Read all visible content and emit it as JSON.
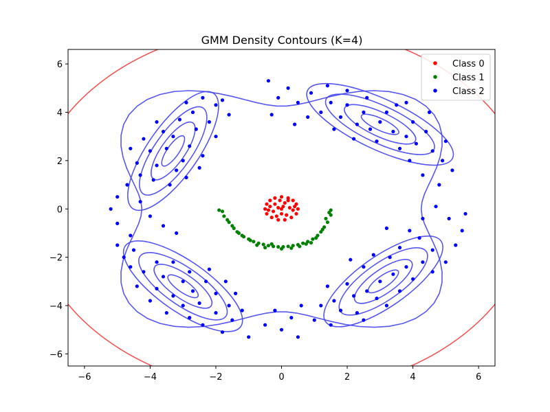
{
  "chart_data": {
    "type": "scatter",
    "title": "GMM Density Contours (K=4)",
    "xlabel": "",
    "ylabel": "",
    "xlim": [
      -6.5,
      6.5
    ],
    "ylim": [
      -6.5,
      6.6
    ],
    "x_ticks": [
      -6,
      -4,
      -2,
      0,
      2,
      4,
      6
    ],
    "y_ticks": [
      -6,
      -4,
      -2,
      0,
      2,
      4,
      6
    ],
    "x_tick_labels": [
      "−6",
      "−4",
      "−2",
      "0",
      "2",
      "4",
      "6"
    ],
    "y_tick_labels": [
      "−6",
      "−4",
      "−2",
      "0",
      "2",
      "4",
      "6"
    ],
    "grid": false,
    "legend_position": "top-right",
    "series": [
      {
        "name": "Class 0",
        "color": "#ff0000",
        "points": [
          [
            0,
            0.5
          ],
          [
            -0.2,
            0.45
          ],
          [
            0.2,
            0.45
          ],
          [
            -0.35,
            0.35
          ],
          [
            0.35,
            0.35
          ],
          [
            -0.45,
            0.2
          ],
          [
            0.45,
            0.2
          ],
          [
            -0.5,
            0
          ],
          [
            0.5,
            0
          ],
          [
            -0.45,
            -0.2
          ],
          [
            0.45,
            -0.2
          ],
          [
            -0.3,
            -0.35
          ],
          [
            0.3,
            -0.35
          ],
          [
            -0.1,
            -0.45
          ],
          [
            0.1,
            -0.45
          ],
          [
            -0.2,
            0.2
          ],
          [
            0.1,
            0.25
          ],
          [
            0.25,
            0.05
          ],
          [
            -0.25,
            -0.1
          ],
          [
            0,
            -0.2
          ],
          [
            0.15,
            -0.25
          ],
          [
            -0.1,
            0.05
          ],
          [
            0.05,
            0.1
          ],
          [
            -0.35,
            0.1
          ],
          [
            0.35,
            -0.05
          ],
          [
            -0.15,
            -0.3
          ],
          [
            0.2,
            0.35
          ],
          [
            -0.05,
            0.35
          ],
          [
            0.4,
            0.1
          ],
          [
            -0.4,
            -0.05
          ],
          [
            0,
            0
          ]
        ]
      },
      {
        "name": "Class 1",
        "color": "#008000",
        "points": [
          [
            -1.9,
            -0.05
          ],
          [
            -1.75,
            -0.3
          ],
          [
            -1.6,
            -0.55
          ],
          [
            -1.45,
            -0.8
          ],
          [
            -1.3,
            -1.0
          ],
          [
            -1.15,
            -1.15
          ],
          [
            -1.0,
            -1.25
          ],
          [
            -0.85,
            -1.35
          ],
          [
            -0.7,
            -1.42
          ],
          [
            -0.55,
            -1.47
          ],
          [
            -0.4,
            -1.52
          ],
          [
            -0.25,
            -1.55
          ],
          [
            -0.1,
            -1.57
          ],
          [
            0.05,
            -1.57
          ],
          [
            0.2,
            -1.55
          ],
          [
            0.35,
            -1.52
          ],
          [
            0.5,
            -1.48
          ],
          [
            0.65,
            -1.42
          ],
          [
            0.8,
            -1.35
          ],
          [
            0.95,
            -1.25
          ],
          [
            1.1,
            -1.1
          ],
          [
            1.2,
            -0.95
          ],
          [
            1.3,
            -0.75
          ],
          [
            1.4,
            -0.55
          ],
          [
            1.5,
            -0.25
          ],
          [
            1.5,
            -0.05
          ],
          [
            -1.8,
            -0.1
          ],
          [
            -1.65,
            -0.45
          ],
          [
            -1.5,
            -0.7
          ],
          [
            -1.35,
            -0.95
          ],
          [
            -1.2,
            -1.1
          ],
          [
            -0.95,
            -1.3
          ],
          [
            -0.75,
            -1.5
          ],
          [
            -0.5,
            -1.6
          ],
          [
            -0.3,
            -1.45
          ],
          [
            0.0,
            -1.65
          ],
          [
            0.3,
            -1.62
          ],
          [
            0.55,
            -1.55
          ],
          [
            0.75,
            -1.45
          ],
          [
            0.9,
            -1.4
          ],
          [
            1.05,
            -1.2
          ],
          [
            1.25,
            -0.85
          ],
          [
            1.35,
            -0.4
          ],
          [
            1.45,
            -0.15
          ]
        ]
      },
      {
        "name": "Class 2",
        "color": "#0000ff",
        "points": [
          [
            -3.5,
            2.5
          ],
          [
            -3.3,
            3.0
          ],
          [
            -3.0,
            2.0
          ],
          [
            -2.8,
            2.6
          ],
          [
            -3.8,
            1.8
          ],
          [
            -4.0,
            2.4
          ],
          [
            -3.2,
            1.6
          ],
          [
            -2.6,
            3.3
          ],
          [
            -3.6,
            3.2
          ],
          [
            -4.2,
            2.9
          ],
          [
            -2.9,
            1.3
          ],
          [
            -3.9,
            1.2
          ],
          [
            -4.4,
            1.9
          ],
          [
            -2.4,
            2.2
          ],
          [
            -3.1,
            3.7
          ],
          [
            -2.7,
            4.0
          ],
          [
            -3.8,
            3.6
          ],
          [
            -4.6,
            2.5
          ],
          [
            -4.3,
            1.4
          ],
          [
            -2.2,
            3.6
          ],
          [
            -2.0,
            3.0
          ],
          [
            -2.5,
            1.7
          ],
          [
            -3.4,
            1.0
          ],
          [
            -4.7,
            1.0
          ],
          [
            -5.0,
            0.5
          ],
          [
            -5.2,
            0.0
          ],
          [
            -5.0,
            -0.6
          ],
          [
            -4.6,
            -1.1
          ],
          [
            -4.3,
            0.3
          ],
          [
            -4.0,
            -0.3
          ],
          [
            -3.6,
            -0.7
          ],
          [
            -3.2,
            -1.0
          ],
          [
            -2.9,
            4.4
          ],
          [
            -2.4,
            4.6
          ],
          [
            -2.0,
            4.3
          ],
          [
            -1.6,
            3.9
          ],
          [
            -1.8,
            4.5
          ],
          [
            -3.0,
            -3.0
          ],
          [
            -2.7,
            -3.4
          ],
          [
            -2.3,
            -3.0
          ],
          [
            -3.3,
            -3.6
          ],
          [
            -3.6,
            -2.8
          ],
          [
            -2.0,
            -3.5
          ],
          [
            -2.5,
            -3.9
          ],
          [
            -3.0,
            -4.0
          ],
          [
            -3.8,
            -3.3
          ],
          [
            -4.2,
            -2.6
          ],
          [
            -4.0,
            -3.8
          ],
          [
            -2.8,
            -2.6
          ],
          [
            -2.2,
            -2.5
          ],
          [
            -1.7,
            -3.0
          ],
          [
            -1.6,
            -4.0
          ],
          [
            -2.0,
            -4.3
          ],
          [
            -2.8,
            -4.5
          ],
          [
            -3.5,
            -4.3
          ],
          [
            -4.4,
            -3.2
          ],
          [
            -4.6,
            -2.4
          ],
          [
            -3.8,
            -2.2
          ],
          [
            -3.3,
            -2.2
          ],
          [
            -1.4,
            -3.5
          ],
          [
            -1.2,
            -4.2
          ],
          [
            -1.5,
            -4.6
          ],
          [
            -2.4,
            -4.8
          ],
          [
            -1.8,
            -5.1
          ],
          [
            -1.0,
            -5.3
          ],
          [
            -4.8,
            -2.0
          ],
          [
            -5.0,
            -1.5
          ],
          [
            -4.5,
            -1.7
          ],
          [
            2.5,
            4.0
          ],
          [
            3.0,
            3.6
          ],
          [
            2.0,
            4.3
          ],
          [
            3.4,
            3.2
          ],
          [
            2.7,
            3.3
          ],
          [
            1.8,
            3.8
          ],
          [
            3.8,
            3.0
          ],
          [
            3.2,
            4.0
          ],
          [
            2.3,
            3.5
          ],
          [
            1.5,
            4.4
          ],
          [
            1.2,
            4.0
          ],
          [
            2.9,
            2.8
          ],
          [
            3.6,
            2.5
          ],
          [
            4.1,
            2.7
          ],
          [
            4.4,
            3.2
          ],
          [
            4.0,
            3.6
          ],
          [
            3.5,
            4.3
          ],
          [
            2.6,
            4.6
          ],
          [
            2.0,
            4.9
          ],
          [
            1.4,
            5.1
          ],
          [
            0.9,
            4.8
          ],
          [
            0.5,
            4.4
          ],
          [
            0.8,
            3.8
          ],
          [
            1.6,
            3.3
          ],
          [
            2.2,
            2.9
          ],
          [
            4.6,
            2.4
          ],
          [
            4.9,
            2.0
          ],
          [
            5.2,
            1.6
          ],
          [
            4.8,
            1.0
          ],
          [
            4.3,
            1.4
          ],
          [
            3.9,
            2.0
          ],
          [
            5.0,
            2.8
          ],
          [
            4.5,
            4.0
          ],
          [
            3.8,
            4.4
          ],
          [
            0.2,
            5.0
          ],
          [
            -0.4,
            5.3
          ],
          [
            -0.1,
            4.6
          ],
          [
            0.4,
            3.5
          ],
          [
            -0.3,
            3.9
          ],
          [
            3.0,
            -3.0
          ],
          [
            2.6,
            -3.4
          ],
          [
            3.4,
            -2.7
          ],
          [
            2.2,
            -3.6
          ],
          [
            3.8,
            -2.4
          ],
          [
            2.9,
            -3.7
          ],
          [
            3.3,
            -2.0
          ],
          [
            2.0,
            -3.1
          ],
          [
            4.0,
            -2.9
          ],
          [
            2.5,
            -2.4
          ],
          [
            1.6,
            -3.8
          ],
          [
            1.8,
            -4.2
          ],
          [
            2.3,
            -4.3
          ],
          [
            3.6,
            -3.4
          ],
          [
            4.3,
            -2.2
          ],
          [
            4.6,
            -1.7
          ],
          [
            4.2,
            -1.2
          ],
          [
            3.6,
            -1.6
          ],
          [
            2.8,
            -1.9
          ],
          [
            2.1,
            -2.1
          ],
          [
            1.4,
            -3.2
          ],
          [
            1.2,
            -4.0
          ],
          [
            1.0,
            -4.6
          ],
          [
            1.5,
            -4.8
          ],
          [
            2.5,
            -4.6
          ],
          [
            3.2,
            -4.0
          ],
          [
            4.6,
            -2.6
          ],
          [
            5.0,
            -2.2
          ],
          [
            5.3,
            -1.5
          ],
          [
            5.5,
            -0.9
          ],
          [
            5.1,
            -0.4
          ],
          [
            4.7,
            0.1
          ],
          [
            4.3,
            -0.4
          ],
          [
            3.9,
            -0.9
          ],
          [
            3.2,
            -0.8
          ],
          [
            5.6,
            -0.2
          ],
          [
            0.6,
            -4.0
          ],
          [
            0.3,
            -4.5
          ],
          [
            -0.2,
            -4.2
          ],
          [
            0.0,
            -5.0
          ],
          [
            0.5,
            -5.3
          ],
          [
            -0.5,
            -4.8
          ]
        ]
      }
    ],
    "contours": {
      "blue_color": "#4444ee",
      "red_color": "#ee4444"
    }
  }
}
